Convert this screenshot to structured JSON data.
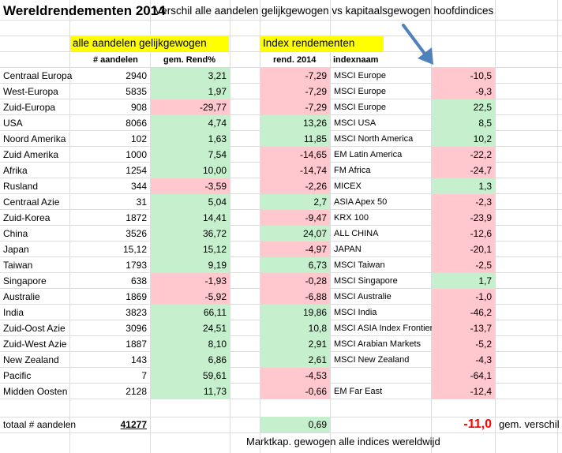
{
  "title": "Wereldrendementen 2014",
  "subtitle": "Verschil alle aandelen gelijkgewogen vs kapitaalsgewogen hoofdindices",
  "section_equal": "alle aandelen gelijkgewogen",
  "section_index": "Index rendementen",
  "headers": {
    "aandelen": "# aandelen",
    "rend": "gem. Rend%",
    "index_rend": "rend. 2014",
    "indexnaam": "indexnaam"
  },
  "colors": {
    "positive_fill": "#c6efce",
    "negative_fill": "#ffc7ce",
    "header_fill": "#ffff00",
    "arrow": "#4f81bd",
    "highlight_text": "#ff0000"
  },
  "rows": [
    {
      "region": "Centraal Europa",
      "count": "2940",
      "rend": "3,21",
      "rend_sign": "pos",
      "idx": "-7,29",
      "idx_sign": "neg",
      "name": "MSCI Europe",
      "diff": "-10,5",
      "diff_sign": "neg"
    },
    {
      "region": "West-Europa",
      "count": "5835",
      "rend": "1,97",
      "rend_sign": "pos",
      "idx": "-7,29",
      "idx_sign": "neg",
      "name": "MSCI Europe",
      "diff": "-9,3",
      "diff_sign": "neg"
    },
    {
      "region": "Zuid-Europa",
      "count": "908",
      "rend": "-29,77",
      "rend_sign": "neg",
      "idx": "-7,29",
      "idx_sign": "neg",
      "name": "MSCI Europe",
      "diff": "22,5",
      "diff_sign": "pos"
    },
    {
      "region": "USA",
      "count": "8066",
      "rend": "4,74",
      "rend_sign": "pos",
      "idx": "13,26",
      "idx_sign": "pos",
      "name": "MSCI USA",
      "diff": "8,5",
      "diff_sign": "pos"
    },
    {
      "region": "Noord Amerika",
      "count": "102",
      "rend": "1,63",
      "rend_sign": "pos",
      "idx": "11,85",
      "idx_sign": "pos",
      "name": "MSCI North America",
      "diff": "10,2",
      "diff_sign": "pos"
    },
    {
      "region": "Zuid Amerika",
      "count": "1000",
      "rend": "7,54",
      "rend_sign": "pos",
      "idx": "-14,65",
      "idx_sign": "neg",
      "name": "EM Latin America",
      "diff": "-22,2",
      "diff_sign": "neg"
    },
    {
      "region": "Afrika",
      "count": "1254",
      "rend": "10,00",
      "rend_sign": "pos",
      "idx": "-14,74",
      "idx_sign": "neg",
      "name": "FM Africa",
      "diff": "-24,7",
      "diff_sign": "neg"
    },
    {
      "region": "Rusland",
      "count": "344",
      "rend": "-3,59",
      "rend_sign": "neg",
      "idx": "-2,26",
      "idx_sign": "neg",
      "name": "MICEX",
      "diff": "1,3",
      "diff_sign": "pos"
    },
    {
      "region": "Centraal Azie",
      "count": "31",
      "rend": "5,04",
      "rend_sign": "pos",
      "idx": "2,7",
      "idx_sign": "pos",
      "name": "ASIA Apex 50",
      "diff": "-2,3",
      "diff_sign": "neg"
    },
    {
      "region": "Zuid-Korea",
      "count": "1872",
      "rend": "14,41",
      "rend_sign": "pos",
      "idx": "-9,47",
      "idx_sign": "neg",
      "name": "KRX 100",
      "diff": "-23,9",
      "diff_sign": "neg"
    },
    {
      "region": "China",
      "count": "3526",
      "rend": "36,72",
      "rend_sign": "pos",
      "idx": "24,07",
      "idx_sign": "pos",
      "name": "ALL CHINA",
      "diff": "-12,6",
      "diff_sign": "neg"
    },
    {
      "region": "Japan",
      "count": "15,12",
      "rend": "15,12",
      "rend_sign": "pos",
      "idx": "-4,97",
      "idx_sign": "neg",
      "name": "JAPAN",
      "diff": "-20,1",
      "diff_sign": "neg"
    },
    {
      "region": "Taiwan",
      "count": "1793",
      "rend": "9,19",
      "rend_sign": "pos",
      "idx": "6,73",
      "idx_sign": "pos",
      "name": "MSCI Taiwan",
      "diff": "-2,5",
      "diff_sign": "neg"
    },
    {
      "region": "Singapore",
      "count": "638",
      "rend": "-1,93",
      "rend_sign": "neg",
      "idx": "-0,28",
      "idx_sign": "neg",
      "name": "MSCI Singapore",
      "diff": "1,7",
      "diff_sign": "pos"
    },
    {
      "region": "Australie",
      "count": "1869",
      "rend": "-5,92",
      "rend_sign": "neg",
      "idx": "-6,88",
      "idx_sign": "neg",
      "name": "MSCI Australie",
      "diff": "-1,0",
      "diff_sign": "neg"
    },
    {
      "region": "India",
      "count": "3823",
      "rend": "66,11",
      "rend_sign": "pos",
      "idx": "19,86",
      "idx_sign": "pos",
      "name": "MSCI India",
      "diff": "-46,2",
      "diff_sign": "neg"
    },
    {
      "region": "Zuid-Oost Azie",
      "count": "3096",
      "rend": "24,51",
      "rend_sign": "pos",
      "idx": "10,8",
      "idx_sign": "pos",
      "name": "MSCI ASIA Index Frontier",
      "diff": "-13,7",
      "diff_sign": "neg"
    },
    {
      "region": "Zuid-West Azie",
      "count": "1887",
      "rend": "8,10",
      "rend_sign": "pos",
      "idx": "2,91",
      "idx_sign": "pos",
      "name": "MSCI Arabian Markets",
      "diff": "-5,2",
      "diff_sign": "neg"
    },
    {
      "region": "New Zealand",
      "count": "143",
      "rend": "6,86",
      "rend_sign": "pos",
      "idx": "2,61",
      "idx_sign": "pos",
      "name": "MSCI New Zealand",
      "diff": "-4,3",
      "diff_sign": "neg"
    },
    {
      "region": "Pacific",
      "count": "7",
      "rend": "59,61",
      "rend_sign": "pos",
      "idx": "-4,53",
      "idx_sign": "neg",
      "name": "",
      "diff": "-64,1",
      "diff_sign": "neg"
    },
    {
      "region": "Midden Oosten",
      "count": "2128",
      "rend": "11,73",
      "rend_sign": "pos",
      "idx": "-0,66",
      "idx_sign": "neg",
      "name": "EM Far East",
      "diff": "-12,4",
      "diff_sign": "neg"
    }
  ],
  "totals": {
    "label": "totaal # aandelen",
    "count": "41277",
    "index_avg": "0,69",
    "diff_avg": "-11,0",
    "diff_label": "gem. verschil"
  },
  "footnote": "Marktkap. gewogen alle indices wereldwijd"
}
